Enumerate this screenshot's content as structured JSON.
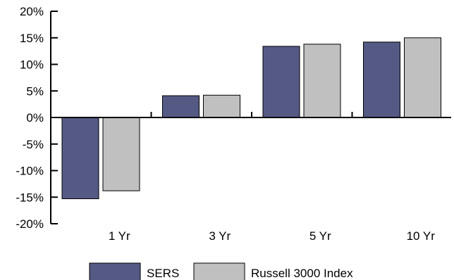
{
  "chart_data": {
    "type": "bar",
    "title": "",
    "xlabel": "",
    "ylabel": "",
    "categories": [
      "1 Yr",
      "3 Yr",
      "5 Yr",
      "10 Yr"
    ],
    "series": [
      {
        "name": "SERS",
        "values": [
          -15.3,
          4.1,
          13.4,
          14.2
        ],
        "color": "#555a85"
      },
      {
        "name": "Russell 3000 Index",
        "values": [
          -13.8,
          4.2,
          13.8,
          15.0
        ],
        "color": "#c0c0c0"
      }
    ],
    "ylim": [
      -20,
      20
    ],
    "yticks": [
      "-20%",
      "-15%",
      "-10%",
      "-5%",
      "0%",
      "5%",
      "10%",
      "15%",
      "20%"
    ],
    "grid": false,
    "legend_position": "bottom-center"
  }
}
